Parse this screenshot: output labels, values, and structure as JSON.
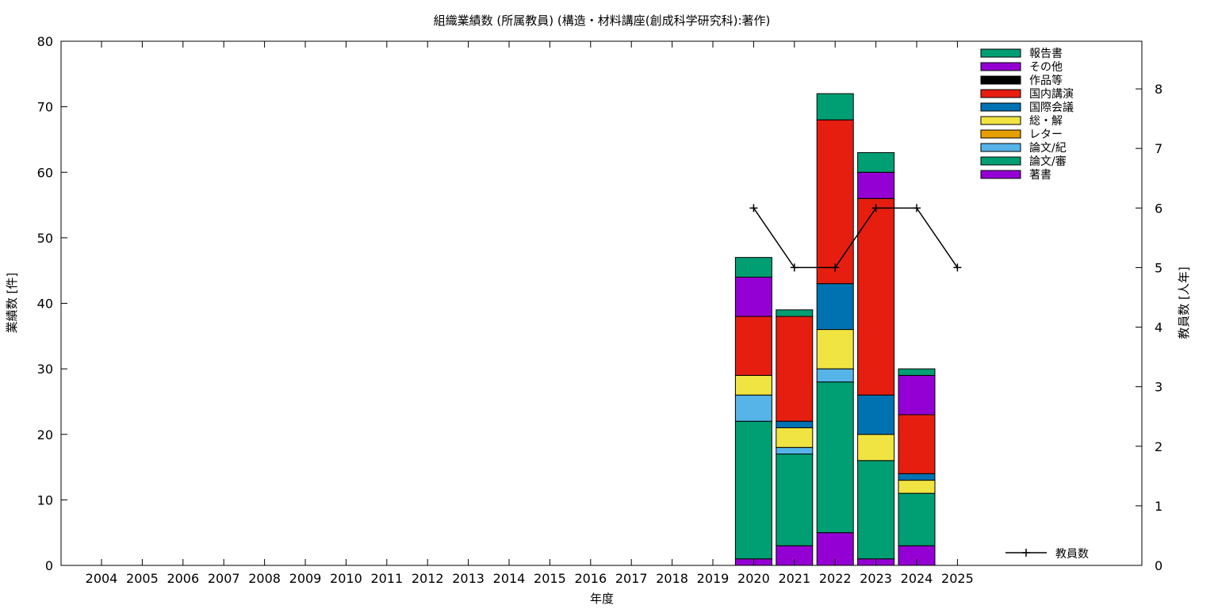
{
  "chart_data": {
    "type": "bar",
    "title": "組織業績数 (所属教員) (構造・材料講座(創成科学研究科):著作)",
    "xlabel": "年度",
    "ylabel": "業績数 [件]",
    "y2label": "教員数 [人年]",
    "ylim": [
      0,
      80
    ],
    "y2lim": [
      0,
      8.8
    ],
    "yticks": [
      0,
      10,
      20,
      30,
      40,
      50,
      60,
      70,
      80
    ],
    "y2ticks": [
      0,
      1,
      2,
      3,
      4,
      5,
      6,
      7,
      8
    ],
    "categories": [
      "2004",
      "2005",
      "2006",
      "2007",
      "2008",
      "2009",
      "2010",
      "2011",
      "2012",
      "2013",
      "2014",
      "2015",
      "2016",
      "2017",
      "2018",
      "2019",
      "2020",
      "2021",
      "2022",
      "2023",
      "2024",
      "2025"
    ],
    "stacked": true,
    "legend_position": "top-right",
    "series": [
      {
        "name": "著書",
        "color": "#9400d3",
        "values": [
          0,
          0,
          0,
          0,
          0,
          0,
          0,
          0,
          0,
          0,
          0,
          0,
          0,
          0,
          0,
          0,
          1,
          3,
          5,
          1,
          3,
          0
        ]
      },
      {
        "name": "論文/審",
        "color": "#009e73",
        "values": [
          0,
          0,
          0,
          0,
          0,
          0,
          0,
          0,
          0,
          0,
          0,
          0,
          0,
          0,
          0,
          0,
          21,
          14,
          23,
          15,
          8,
          0
        ]
      },
      {
        "name": "論文/紀",
        "color": "#56b4e9",
        "values": [
          0,
          0,
          0,
          0,
          0,
          0,
          0,
          0,
          0,
          0,
          0,
          0,
          0,
          0,
          0,
          0,
          4,
          1,
          2,
          0,
          0,
          0
        ]
      },
      {
        "name": "レター",
        "color": "#e69f00",
        "values": [
          0,
          0,
          0,
          0,
          0,
          0,
          0,
          0,
          0,
          0,
          0,
          0,
          0,
          0,
          0,
          0,
          0,
          0,
          0,
          0,
          0,
          0
        ]
      },
      {
        "name": "総・解",
        "color": "#f0e442",
        "values": [
          0,
          0,
          0,
          0,
          0,
          0,
          0,
          0,
          0,
          0,
          0,
          0,
          0,
          0,
          0,
          0,
          3,
          3,
          6,
          4,
          2,
          0
        ]
      },
      {
        "name": "国際会議",
        "color": "#0072b2",
        "values": [
          0,
          0,
          0,
          0,
          0,
          0,
          0,
          0,
          0,
          0,
          0,
          0,
          0,
          0,
          0,
          0,
          0,
          1,
          7,
          6,
          1,
          0
        ]
      },
      {
        "name": "国内講演",
        "color": "#e51e10",
        "values": [
          0,
          0,
          0,
          0,
          0,
          0,
          0,
          0,
          0,
          0,
          0,
          0,
          0,
          0,
          0,
          0,
          9,
          16,
          25,
          30,
          9,
          0
        ]
      },
      {
        "name": "作品等",
        "color": "#000000",
        "values": [
          0,
          0,
          0,
          0,
          0,
          0,
          0,
          0,
          0,
          0,
          0,
          0,
          0,
          0,
          0,
          0,
          0,
          0,
          0,
          0,
          0,
          0
        ]
      },
      {
        "name": "その他",
        "color": "#9400d3",
        "values": [
          0,
          0,
          0,
          0,
          0,
          0,
          0,
          0,
          0,
          0,
          0,
          0,
          0,
          0,
          0,
          0,
          6,
          0,
          0,
          4,
          6,
          0
        ]
      },
      {
        "name": "報告書",
        "color": "#009e73",
        "values": [
          0,
          0,
          0,
          0,
          0,
          0,
          0,
          0,
          0,
          0,
          0,
          0,
          0,
          0,
          0,
          0,
          3,
          1,
          4,
          3,
          1,
          0
        ]
      }
    ],
    "line_series": {
      "name": "教員数",
      "axis": "y2",
      "color": "#000000",
      "x": [
        "2020",
        "2021",
        "2022",
        "2023",
        "2024",
        "2025"
      ],
      "values": [
        6,
        5,
        5,
        6,
        6,
        5
      ]
    },
    "grid": false
  }
}
